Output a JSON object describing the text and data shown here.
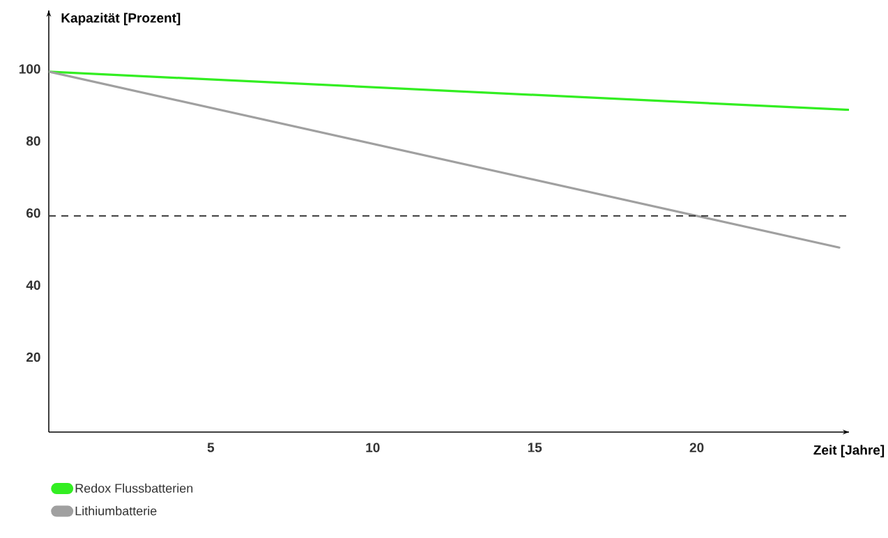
{
  "chart_data": {
    "type": "line",
    "xlabel": "Zeit [Jahre]",
    "ylabel": "Kapazität [Prozent]",
    "xlim": [
      0,
      24.7
    ],
    "xticks": [
      5,
      10,
      15,
      20
    ],
    "ylim": [
      0,
      117
    ],
    "yticks": [
      20,
      40,
      60,
      80,
      100
    ],
    "grid": false,
    "legend": "bottom left",
    "marker": "none",
    "line_style": "solid",
    "series": [
      {
        "name": "Redox Flussbatterien",
        "color": "#33ee22",
        "x": [
          0,
          24.7
        ],
        "values": [
          100,
          89.4
        ]
      },
      {
        "name": "Lithiumbatterie",
        "color": "#a0a0a0",
        "x": [
          0,
          24.4
        ],
        "values": [
          100,
          51.2
        ]
      }
    ],
    "ref_lines": [
      {
        "axis": "y",
        "value": 60,
        "color": "#333333",
        "line_style": "dashed"
      }
    ]
  }
}
